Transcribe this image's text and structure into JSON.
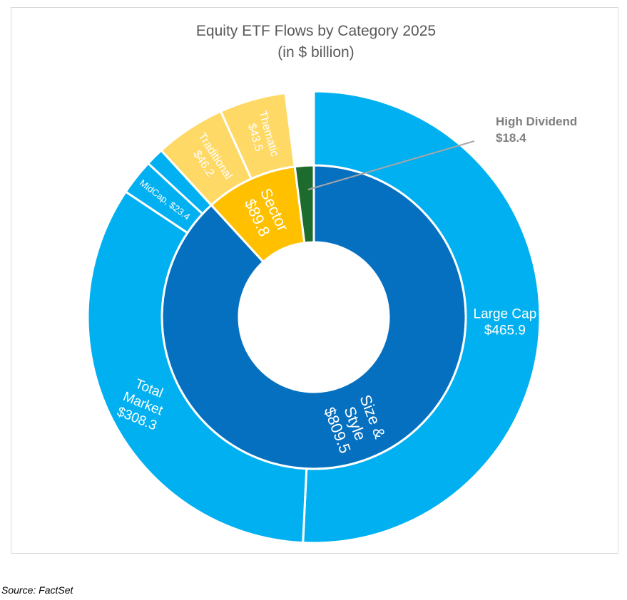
{
  "chart_data": {
    "type": "sunburst",
    "title": "Equity ETF Flows by Category 2025",
    "subtitle": "(in $ billion)",
    "inner": [
      {
        "label": "Size &\nStyle\n$809.5",
        "name": "Size & Style",
        "value": 809.5,
        "color": "#0570C0"
      },
      {
        "label": "Sector\n$89.8",
        "name": "Sector",
        "value": 89.8,
        "color": "#FFC000"
      },
      {
        "label": "High Dividend\n$18.4",
        "name": "High Dividend",
        "value": 18.4,
        "color": "#1E6B2E"
      }
    ],
    "outer": [
      {
        "label": "Large Cap\n$465.9",
        "name": "Large Cap",
        "value": 465.9,
        "parent": "Size & Style",
        "color": "#00B0F0"
      },
      {
        "label": "Total\nMarket\n$308.3",
        "name": "Total Market",
        "value": 308.3,
        "parent": "Size & Style",
        "color": "#00B0F0"
      },
      {
        "label": "MidCap, $23.4",
        "name": "MidCap",
        "value": 23.4,
        "parent": "Size & Style",
        "color": "#00B0F0"
      },
      {
        "label": "",
        "name": "",
        "value": 11.9,
        "parent": "Size & Style",
        "color": "#00B0F0"
      },
      {
        "label": "Traditional\n$46.2",
        "name": "Traditional",
        "value": 46.2,
        "parent": "Sector",
        "color": "#FFD966"
      },
      {
        "label": "Thematic\n$43.5",
        "name": "Thematic",
        "value": 43.5,
        "parent": "Sector",
        "color": "#FFD966"
      }
    ]
  },
  "source": "Source: FactSet"
}
